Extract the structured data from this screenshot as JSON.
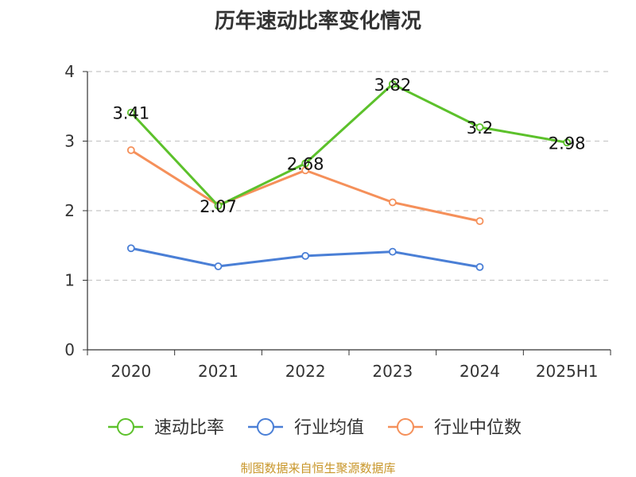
{
  "chart_data": {
    "type": "line",
    "title": "历年速动比率变化情况",
    "categories": [
      "2020",
      "2021",
      "2022",
      "2023",
      "2024",
      "2025H1"
    ],
    "series": [
      {
        "name": "速动比率",
        "color": "#5cc12b",
        "values": [
          3.41,
          2.07,
          2.68,
          3.82,
          3.2,
          2.98
        ],
        "labels": [
          "3.41",
          "2.07",
          "2.68",
          "3.82",
          "3.2",
          "2.98"
        ]
      },
      {
        "name": "行业均值",
        "color": "#4a7fd6",
        "values": [
          1.46,
          1.2,
          1.35,
          1.41,
          1.19,
          null
        ]
      },
      {
        "name": "行业中位数",
        "color": "#f5905a",
        "values": [
          2.87,
          2.08,
          2.58,
          2.12,
          1.85,
          null
        ]
      }
    ],
    "ylim": [
      0,
      4
    ],
    "yticks": [
      "0",
      "1",
      "2",
      "3",
      "4"
    ],
    "grid": true,
    "legend": "bottom"
  },
  "source": "制图数据来自恒生聚源数据库"
}
